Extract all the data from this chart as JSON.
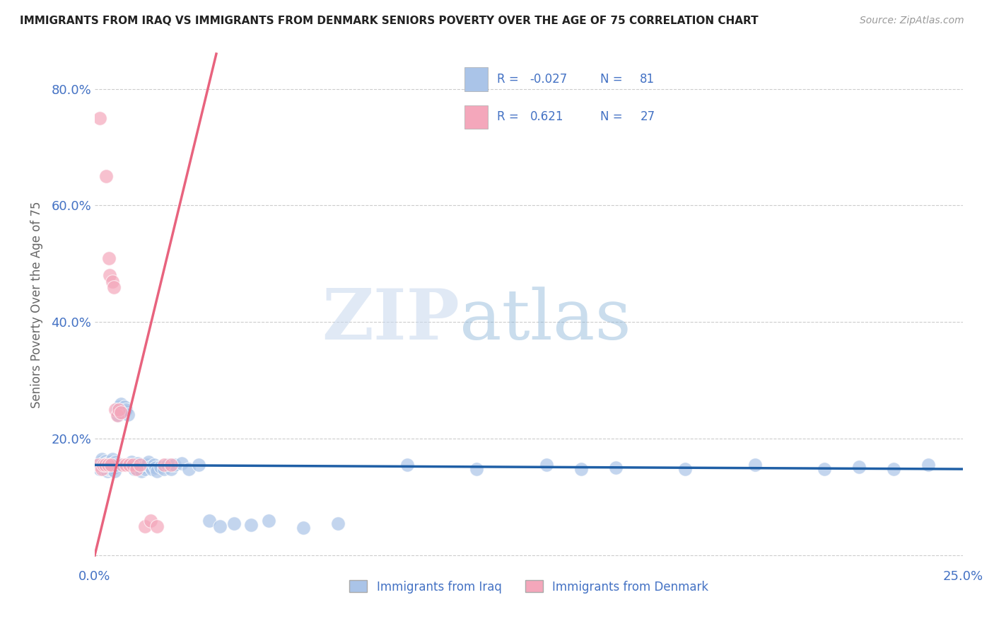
{
  "title": "IMMIGRANTS FROM IRAQ VS IMMIGRANTS FROM DENMARK SENIORS POVERTY OVER THE AGE OF 75 CORRELATION CHART",
  "source_text": "Source: ZipAtlas.com",
  "ylabel": "Seniors Poverty Over the Age of 75",
  "xlim": [
    0.0,
    0.25
  ],
  "ylim": [
    -0.02,
    0.88
  ],
  "ytick_vals": [
    0.0,
    0.2,
    0.4,
    0.6,
    0.8
  ],
  "ytick_labels": [
    "",
    "20.0%",
    "40.0%",
    "60.0%",
    "80.0%"
  ],
  "xtick_vals": [
    0.0,
    0.25
  ],
  "xtick_labels": [
    "0.0%",
    "25.0%"
  ],
  "legend_iraq": "Immigrants from Iraq",
  "legend_denmark": "Immigrants from Denmark",
  "R_iraq": -0.027,
  "N_iraq": 81,
  "R_denmark": 0.621,
  "N_denmark": 27,
  "color_iraq": "#aac4e8",
  "color_denmark": "#f4a7bb",
  "line_color_iraq": "#1f5fa6",
  "line_color_denmark": "#e8637e",
  "grid_color": "#cccccc",
  "background_color": "#ffffff",
  "title_color": "#222222",
  "axis_label_color": "#666666",
  "tick_label_color": "#4472c4",
  "iraq_x": [
    0.001,
    0.0015,
    0.0018,
    0.002,
    0.0022,
    0.0023,
    0.0025,
    0.0027,
    0.0028,
    0.003,
    0.0032,
    0.0033,
    0.0035,
    0.0037,
    0.0038,
    0.004,
    0.0042,
    0.0043,
    0.0045,
    0.0047,
    0.0048,
    0.005,
    0.0052,
    0.0055,
    0.0057,
    0.006,
    0.0062,
    0.0065,
    0.0068,
    0.007,
    0.0073,
    0.0075,
    0.0078,
    0.008,
    0.0085,
    0.0088,
    0.009,
    0.0095,
    0.01,
    0.0105,
    0.011,
    0.0115,
    0.012,
    0.0125,
    0.013,
    0.0135,
    0.014,
    0.0145,
    0.015,
    0.0155,
    0.016,
    0.0165,
    0.017,
    0.0175,
    0.018,
    0.019,
    0.02,
    0.021,
    0.022,
    0.023,
    0.025,
    0.027,
    0.03,
    0.033,
    0.036,
    0.04,
    0.045,
    0.05,
    0.06,
    0.07,
    0.09,
    0.11,
    0.13,
    0.15,
    0.17,
    0.19,
    0.21,
    0.22,
    0.23,
    0.24,
    0.14
  ],
  "iraq_y": [
    0.155,
    0.148,
    0.16,
    0.165,
    0.158,
    0.15,
    0.152,
    0.148,
    0.155,
    0.162,
    0.148,
    0.155,
    0.158,
    0.145,
    0.148,
    0.152,
    0.155,
    0.148,
    0.16,
    0.155,
    0.148,
    0.165,
    0.158,
    0.15,
    0.145,
    0.16,
    0.155,
    0.25,
    0.24,
    0.255,
    0.245,
    0.26,
    0.25,
    0.245,
    0.255,
    0.248,
    0.25,
    0.242,
    0.155,
    0.16,
    0.152,
    0.148,
    0.155,
    0.158,
    0.15,
    0.145,
    0.152,
    0.148,
    0.155,
    0.16,
    0.152,
    0.148,
    0.155,
    0.15,
    0.145,
    0.152,
    0.148,
    0.155,
    0.148,
    0.155,
    0.158,
    0.148,
    0.155,
    0.06,
    0.05,
    0.055,
    0.052,
    0.06,
    0.048,
    0.055,
    0.155,
    0.148,
    0.155,
    0.15,
    0.148,
    0.155,
    0.148,
    0.152,
    0.148,
    0.155,
    0.148
  ],
  "denmark_x": [
    0.001,
    0.0015,
    0.002,
    0.0025,
    0.003,
    0.0033,
    0.0038,
    0.004,
    0.0043,
    0.0047,
    0.005,
    0.0055,
    0.006,
    0.0065,
    0.007,
    0.0075,
    0.008,
    0.009,
    0.01,
    0.011,
    0.012,
    0.013,
    0.0145,
    0.016,
    0.018,
    0.02,
    0.022
  ],
  "denmark_y": [
    0.155,
    0.75,
    0.148,
    0.155,
    0.155,
    0.65,
    0.155,
    0.51,
    0.48,
    0.155,
    0.47,
    0.46,
    0.25,
    0.24,
    0.25,
    0.245,
    0.155,
    0.155,
    0.155,
    0.155,
    0.148,
    0.155,
    0.05,
    0.06,
    0.05,
    0.155,
    0.155
  ],
  "denmark_trend_x": [
    0.0,
    0.035
  ],
  "denmark_trend_y": [
    0.0,
    0.86
  ],
  "iraq_trend_x": [
    0.0,
    0.25
  ],
  "iraq_trend_y": [
    0.155,
    0.148
  ]
}
